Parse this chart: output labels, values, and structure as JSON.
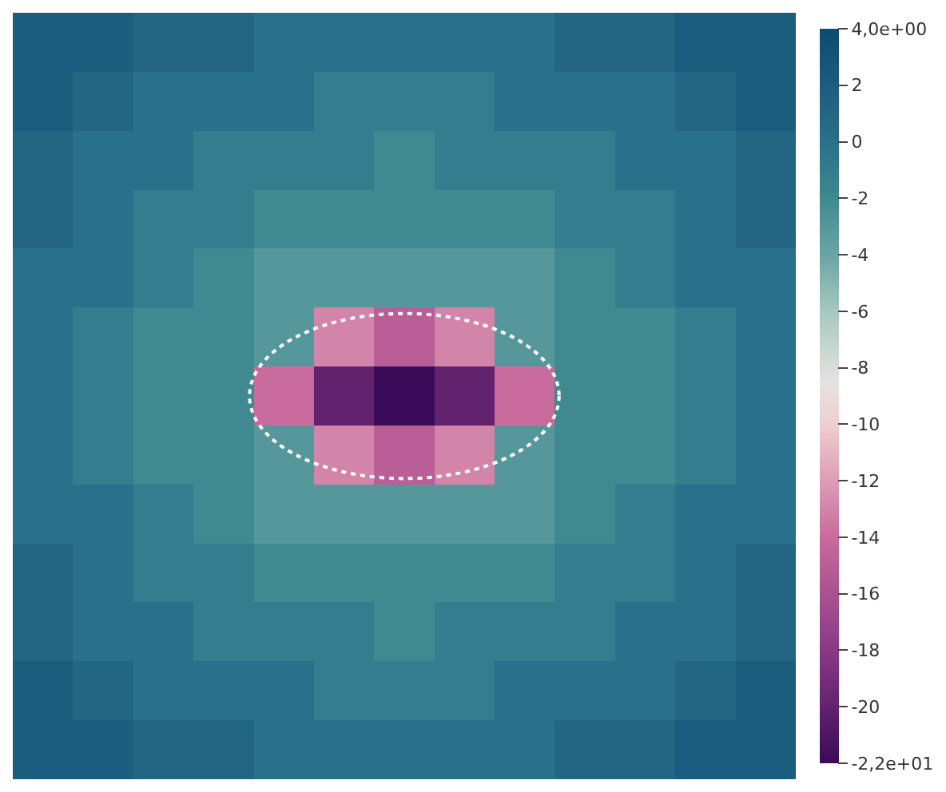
{
  "chart_data": {
    "type": "heatmap",
    "categories": [
      null,
      null,
      null,
      null,
      null,
      null,
      null,
      null,
      null,
      null,
      null,
      null,
      null
    ],
    "y_categories": [
      null,
      null,
      null,
      null,
      null,
      null,
      null,
      null,
      null,
      null,
      null,
      null,
      null
    ],
    "cells": [
      [
        2,
        2,
        1,
        1,
        0,
        0,
        0,
        0,
        0,
        1,
        1,
        2,
        2
      ],
      [
        2,
        1,
        0,
        0,
        0,
        -1,
        -1,
        -1,
        0,
        0,
        0,
        1,
        2
      ],
      [
        1,
        0,
        0,
        -1,
        -1,
        -1,
        -2,
        -1,
        -1,
        -1,
        0,
        0,
        1
      ],
      [
        1,
        0,
        -1,
        -1,
        -2,
        -2,
        -2,
        -2,
        -2,
        -1,
        -1,
        0,
        1
      ],
      [
        0,
        0,
        -1,
        -2,
        -3,
        -3,
        -3,
        -3,
        -3,
        -2,
        -1,
        0,
        0
      ],
      [
        0,
        -1,
        -2,
        -2,
        -3,
        -13,
        -15,
        -13,
        -3,
        -2,
        -2,
        -1,
        0
      ],
      [
        0,
        -1,
        -2,
        -2,
        -14,
        -20,
        -22,
        -20,
        -14,
        -2,
        -2,
        -1,
        0
      ],
      [
        0,
        -1,
        -2,
        -2,
        -3,
        -13,
        -15,
        -13,
        -3,
        -2,
        -2,
        -1,
        0
      ],
      [
        0,
        0,
        -1,
        -2,
        -3,
        -3,
        -3,
        -3,
        -3,
        -2,
        -1,
        0,
        0
      ],
      [
        1,
        0,
        -1,
        -1,
        -2,
        -2,
        -2,
        -2,
        -2,
        -1,
        -1,
        0,
        1
      ],
      [
        1,
        0,
        0,
        -1,
        -1,
        -1,
        -2,
        -1,
        -1,
        -1,
        0,
        0,
        1
      ],
      [
        2,
        1,
        0,
        0,
        0,
        -1,
        -1,
        -1,
        0,
        0,
        0,
        1,
        2
      ],
      [
        2,
        2,
        1,
        1,
        0,
        0,
        0,
        0,
        0,
        1,
        1,
        2,
        2
      ]
    ],
    "clim": [
      -22,
      4
    ],
    "cticks": [
      {
        "value": 4,
        "label": "4,0e+00"
      },
      2,
      0,
      -2,
      -4,
      -6,
      -8,
      -10,
      -12,
      -14,
      -16,
      -18,
      -20,
      {
        "value": -22,
        "label": "-2,2e+01"
      }
    ]
  }
}
